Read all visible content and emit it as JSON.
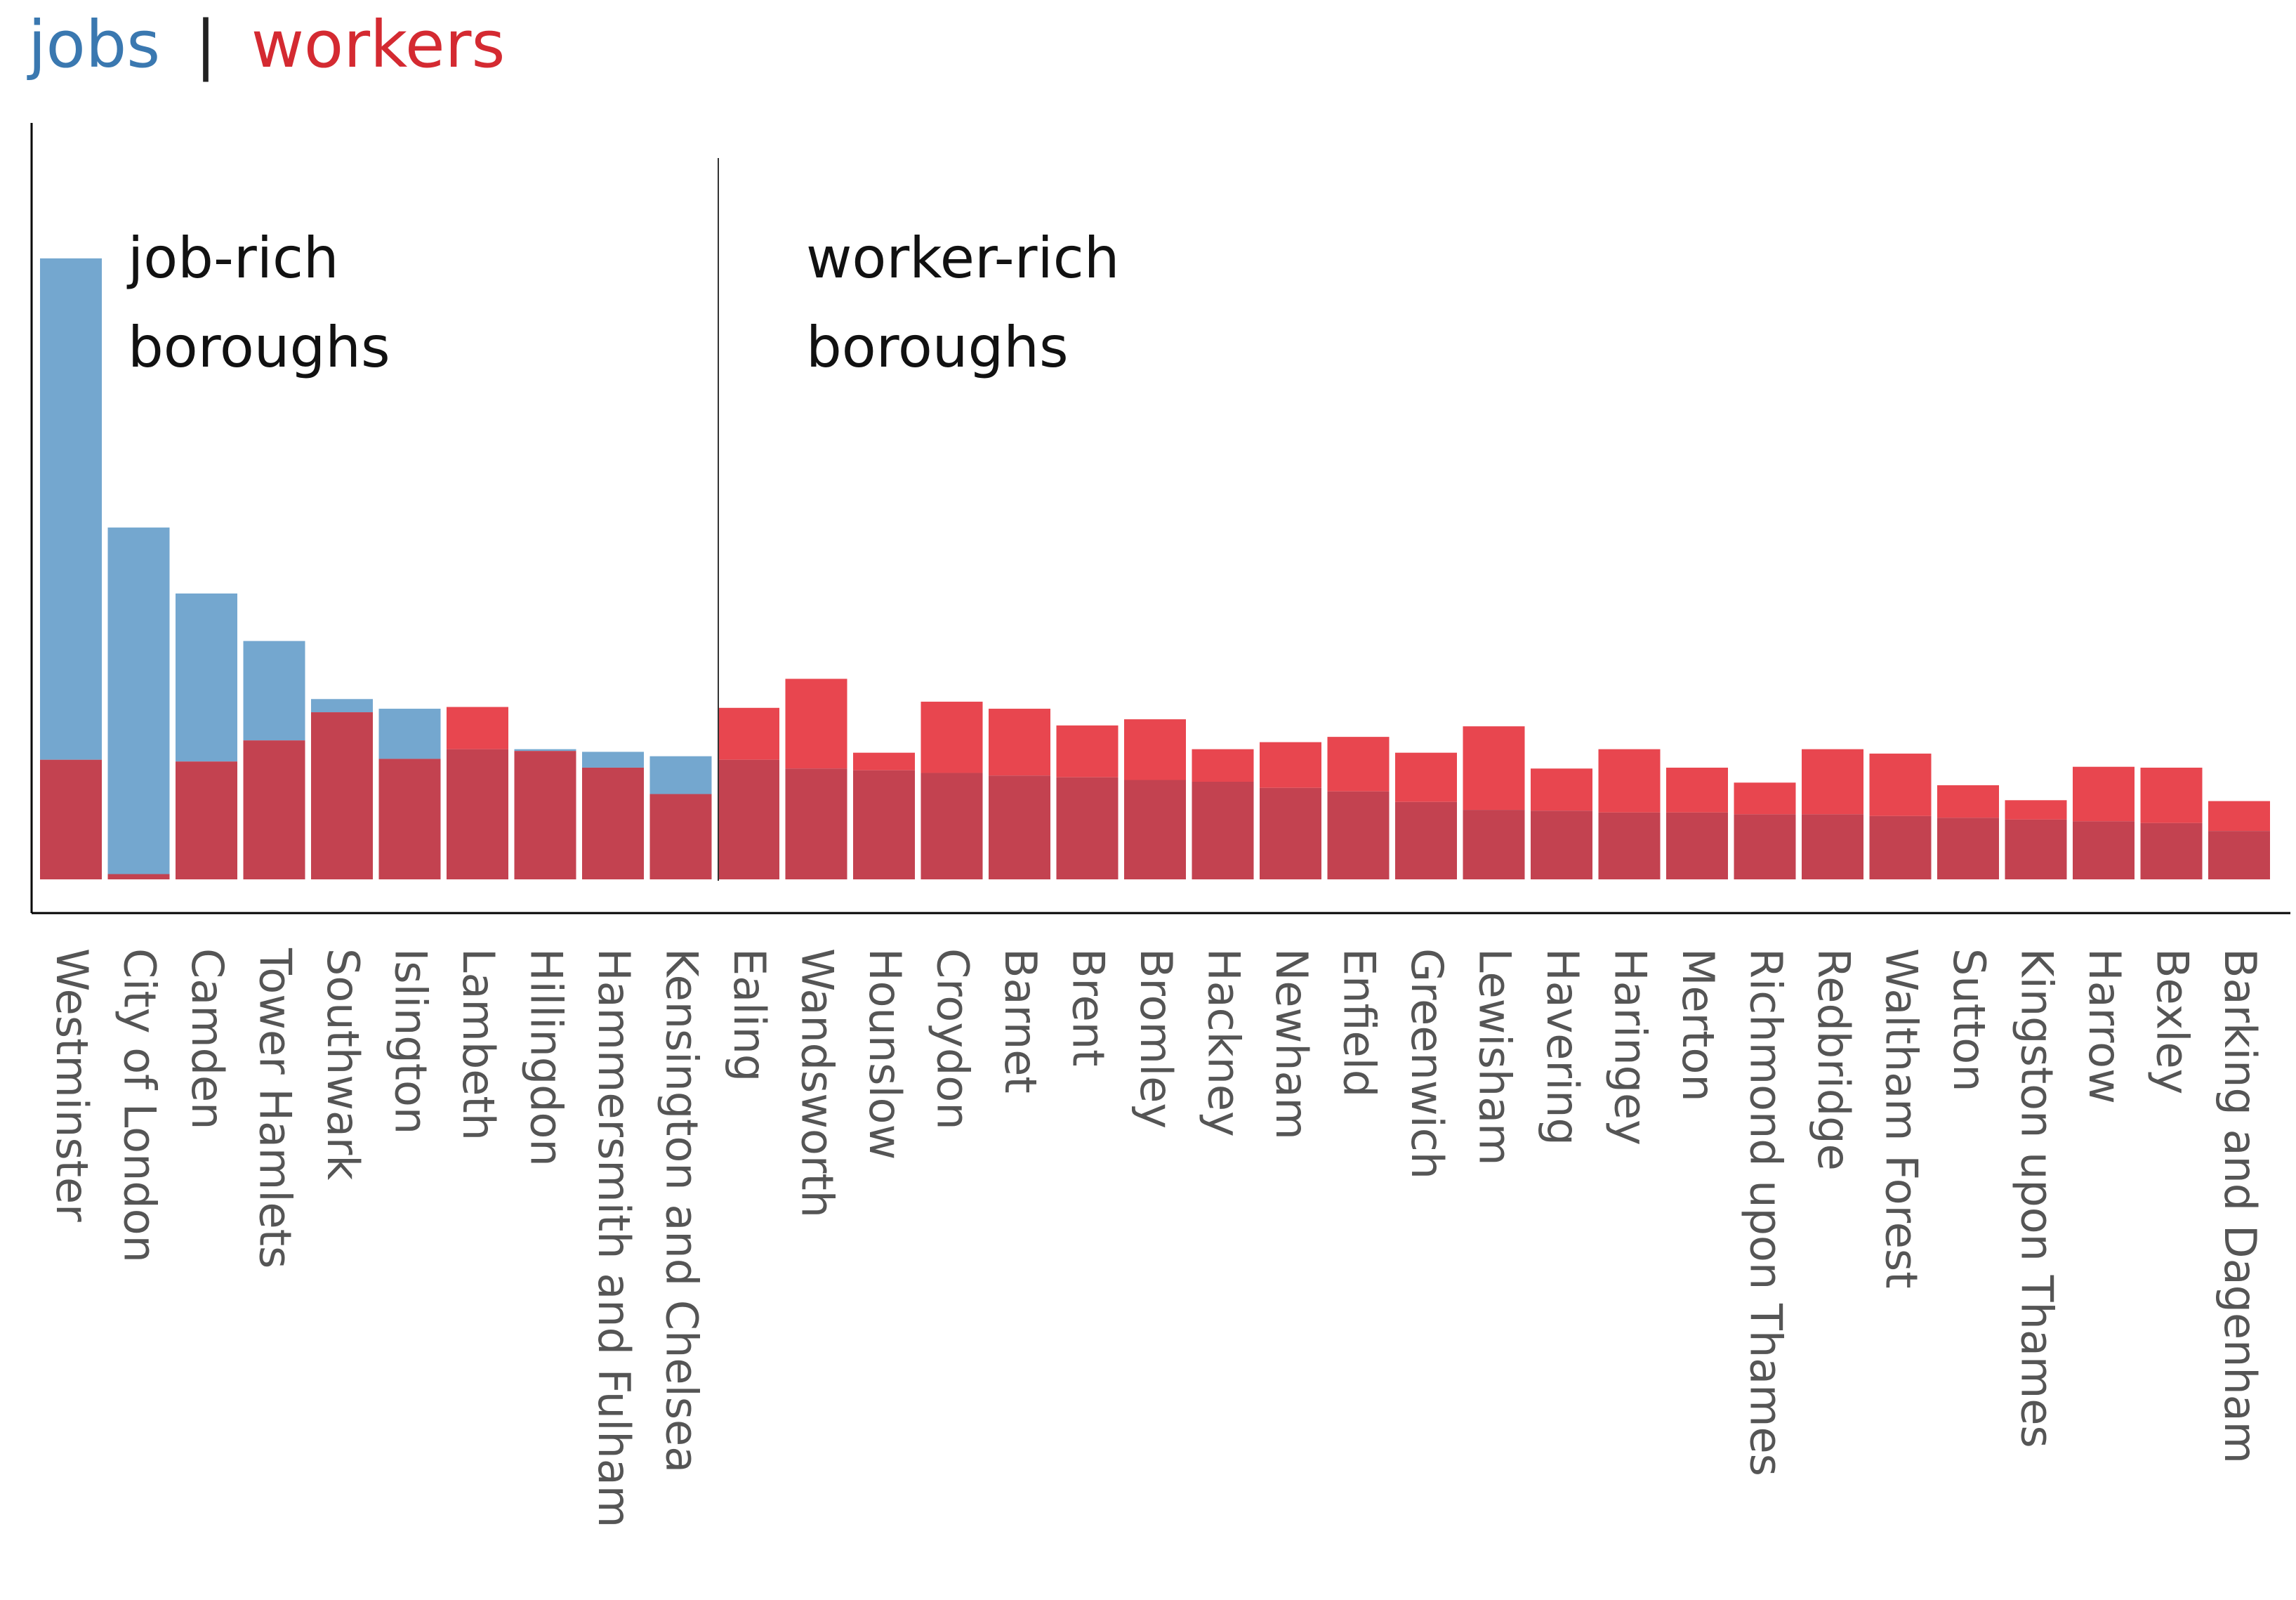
{
  "title": {
    "jobs_label": "jobs",
    "separator": "|",
    "workers_label": "workers"
  },
  "annotations": {
    "job_rich_line1": "job-rich",
    "job_rich_line2": "boroughs",
    "worker_rich_line1": "worker-rich",
    "worker_rich_line2": "boroughs"
  },
  "colors": {
    "jobs": "#74a7cf",
    "workers": "#e8464f",
    "overlap": "#c34250",
    "axis": "#000000",
    "tick_text": "#555555"
  },
  "chart_data": {
    "type": "bar",
    "mode": "overlay",
    "categories": [
      "Westminster",
      "City of London",
      "Camden",
      "Tower Hamlets",
      "Southwark",
      "Islington",
      "Lambeth",
      "Hillingdon",
      "Hammersmith and Fulham",
      "Kensington and Chelsea",
      "Ealing",
      "Wandsworth",
      "Hounslow",
      "Croydon",
      "Barnet",
      "Brent",
      "Bromley",
      "Hackney",
      "Newham",
      "Enfield",
      "Greenwich",
      "Lewisham",
      "Havering",
      "Haringey",
      "Merton",
      "Richmond upon Thames",
      "Redbridge",
      "Waltham Forest",
      "Sutton",
      "Kingston upon Thames",
      "Harrow",
      "Bexley",
      "Barking and Dagenham"
    ],
    "series": [
      {
        "name": "jobs",
        "values": [
          706,
          400,
          325,
          271,
          205,
          194,
          148,
          148,
          145,
          140,
          136,
          126,
          124,
          121,
          118,
          116,
          113,
          111,
          104,
          100,
          88,
          79,
          78,
          76,
          76,
          74,
          74,
          72,
          70,
          68,
          66,
          64,
          55
        ]
      },
      {
        "name": "workers",
        "values": [
          136,
          6,
          134,
          158,
          190,
          137,
          196,
          146,
          127,
          97,
          195,
          228,
          144,
          202,
          194,
          175,
          182,
          148,
          156,
          162,
          144,
          174,
          126,
          148,
          127,
          110,
          148,
          143,
          107,
          90,
          128,
          127,
          89
        ]
      }
    ],
    "group_labels": [
      "job-rich boroughs",
      "worker-rich boroughs"
    ],
    "divider_after_index": 9,
    "ylim": [
      0,
      860
    ],
    "grid": false,
    "legend": "top-left title"
  }
}
